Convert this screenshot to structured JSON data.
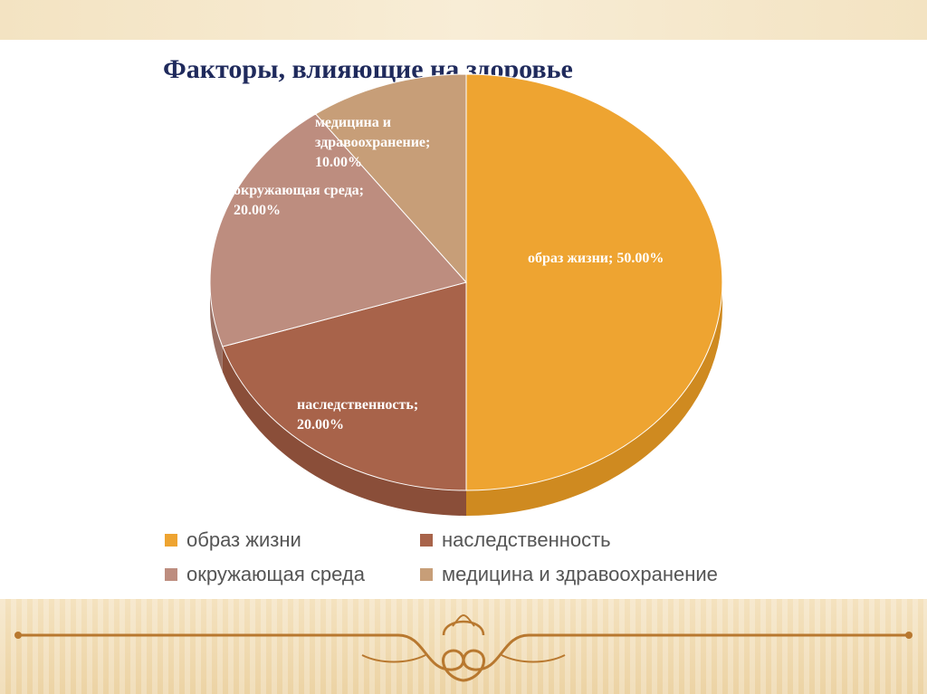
{
  "slide": {
    "title": "Факторы, влияющие на здоровье"
  },
  "chart_data": {
    "type": "pie",
    "title": "Факторы, влияющие на здоровье",
    "series": [
      {
        "name": "образ жизни",
        "value": 50.0,
        "label_lines": [
          "образ жизни; 50.00%"
        ],
        "color": "#eea431",
        "side_color": "#cf8a20"
      },
      {
        "name": "наследственность",
        "value": 20.0,
        "label_lines": [
          "наследственность;",
          "20.00%"
        ],
        "color": "#a8634a",
        "side_color": "#8a4e39"
      },
      {
        "name": "окружающая среда",
        "value": 20.0,
        "label_lines": [
          "окружающая среда;",
          "20.00%"
        ],
        "color": "#bd8d7f",
        "side_color": "#9a7064"
      },
      {
        "name": "медицина и здравоохранение",
        "value": 10.0,
        "label_lines": [
          "медицина и",
          "здравоохранение;",
          "10.00%"
        ],
        "color": "#c79e78",
        "side_color": "#a5805d"
      }
    ],
    "legend": {
      "placement": "bottom",
      "items": [
        "образ жизни",
        "наследственность",
        "окружающая среда",
        "медицина и здравоохранение"
      ]
    },
    "style": "3d-pie"
  }
}
